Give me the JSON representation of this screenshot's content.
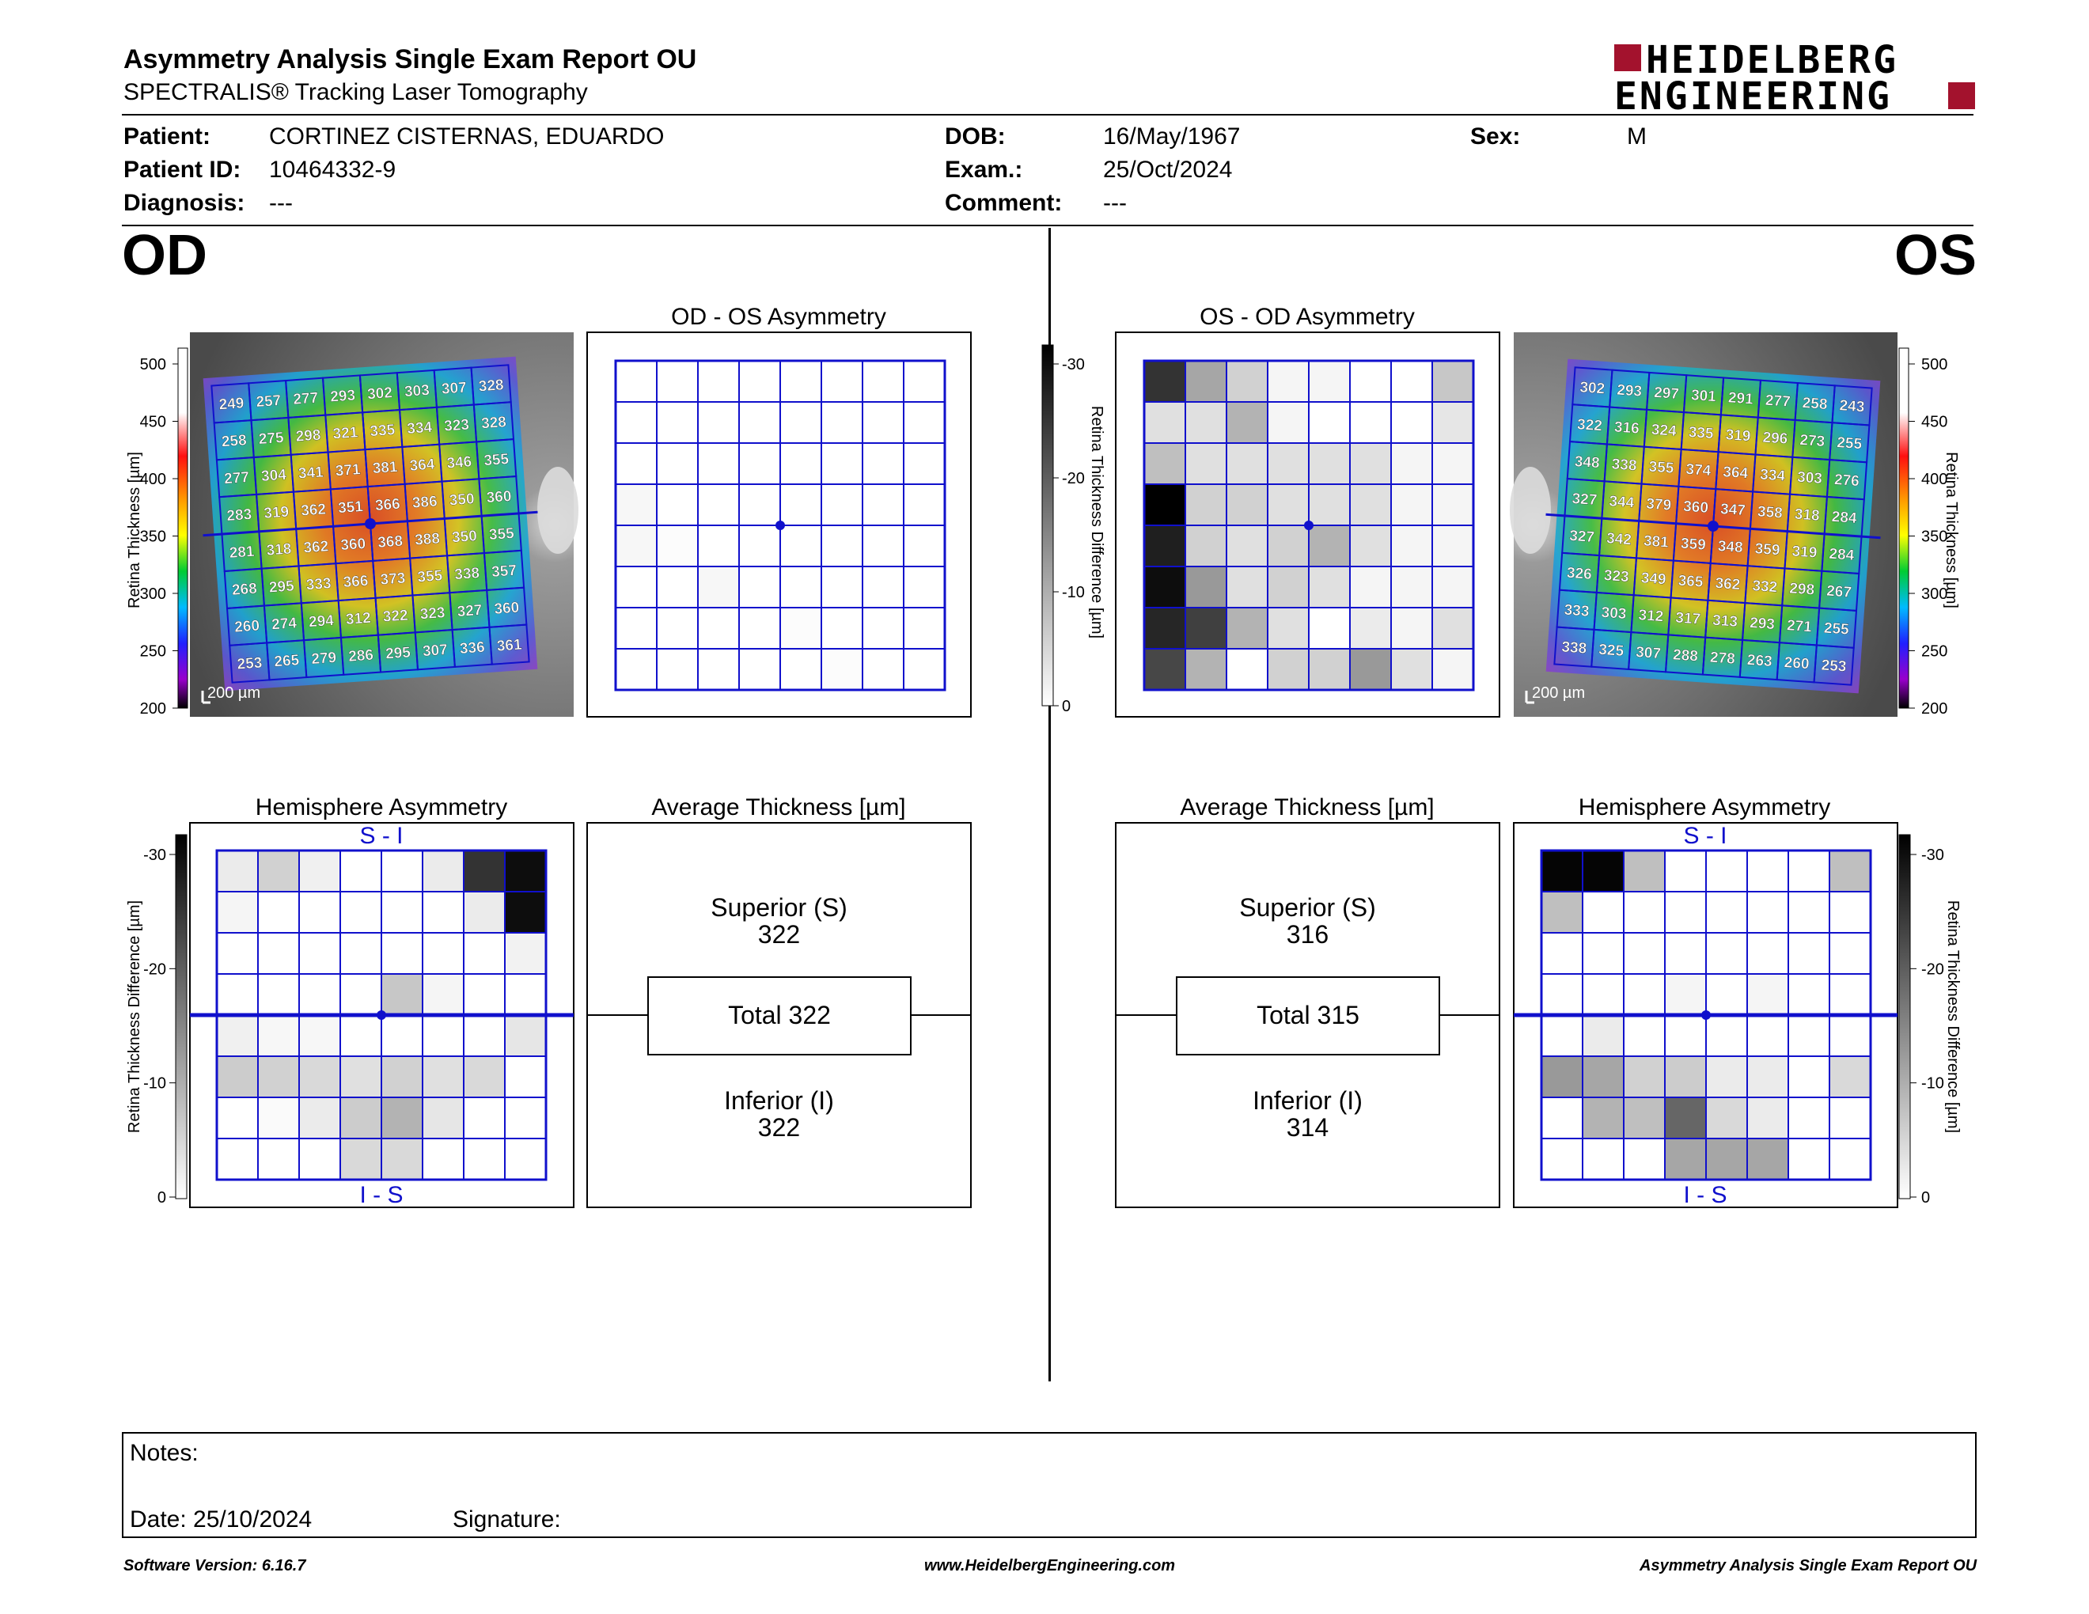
{
  "report": {
    "title": "Asymmetry Analysis Single Exam Report OU",
    "subtitle": "SPECTRALIS® Tracking Laser Tomography",
    "logo_line1": "HEIDELBERG",
    "logo_line2": "ENGINEERING"
  },
  "patient": {
    "patient_label": "Patient:",
    "patient_value": "CORTINEZ CISTERNAS, EDUARDO",
    "id_label": "Patient ID:",
    "id_value": "10464332-9",
    "diagnosis_label": "Diagnosis:",
    "diagnosis_value": "---",
    "dob_label": "DOB:",
    "dob_value": "16/May/1967",
    "exam_label": "Exam.:",
    "exam_value": "25/Oct/2024",
    "comment_label": "Comment:",
    "comment_value": "---",
    "sex_label": "Sex:",
    "sex_value": "M"
  },
  "eyes": {
    "od": "OD",
    "os": "OS"
  },
  "colors": {
    "grid_blue": "#1010cc",
    "accent_red": "#a3122d"
  },
  "od": {
    "thickness_map": {
      "scale_label": "200 µm",
      "axis_label": "Retina Thickness [µm]",
      "ticks": [
        "500",
        "450",
        "400",
        "350",
        "300",
        "250",
        "200"
      ],
      "values": [
        [
          "249",
          "257",
          "277",
          "293",
          "302",
          "303",
          "307",
          "328"
        ],
        [
          "258",
          "275",
          "298",
          "321",
          "335",
          "334",
          "323",
          "328"
        ],
        [
          "277",
          "304",
          "341",
          "371",
          "381",
          "364",
          "346",
          "355"
        ],
        [
          "283",
          "319",
          "362",
          "351",
          "366",
          "386",
          "350",
          "360"
        ],
        [
          "281",
          "318",
          "362",
          "360",
          "368",
          "388",
          "350",
          "355"
        ],
        [
          "268",
          "295",
          "333",
          "366",
          "373",
          "355",
          "338",
          "357"
        ],
        [
          "260",
          "274",
          "294",
          "312",
          "322",
          "323",
          "327",
          "360"
        ],
        [
          "253",
          "265",
          "279",
          "286",
          "295",
          "307",
          "336",
          "361"
        ]
      ]
    },
    "asymmetry": {
      "title": "OD - OS Asymmetry",
      "shades": [
        [
          0,
          0,
          0,
          0,
          0,
          0,
          0,
          0
        ],
        [
          0,
          0,
          0,
          0,
          0,
          0,
          0,
          0
        ],
        [
          0,
          0,
          0,
          0,
          0,
          0,
          0,
          0
        ],
        [
          3,
          0,
          0,
          0,
          0,
          0,
          0,
          0
        ],
        [
          3,
          1,
          0,
          0,
          0,
          0,
          0,
          0
        ],
        [
          0,
          0,
          3,
          0,
          0,
          0,
          0,
          0
        ],
        [
          0,
          0,
          0,
          0,
          1,
          0,
          0,
          0
        ],
        [
          0,
          0,
          0,
          0,
          0,
          1,
          0,
          0
        ]
      ]
    },
    "hemisphere": {
      "title": "Hemisphere Asymmetry",
      "top_label": "S - I",
      "bottom_label": "I - S",
      "shades": [
        [
          8,
          18,
          6,
          0,
          0,
          8,
          80,
          95
        ],
        [
          4,
          0,
          0,
          0,
          0,
          0,
          8,
          95
        ],
        [
          0,
          0,
          0,
          0,
          0,
          0,
          0,
          5
        ],
        [
          0,
          0,
          0,
          0,
          22,
          4,
          0,
          0
        ],
        [
          6,
          3,
          3,
          0,
          0,
          0,
          0,
          10
        ],
        [
          20,
          18,
          15,
          12,
          18,
          12,
          15,
          0
        ],
        [
          0,
          2,
          8,
          20,
          30,
          10,
          0,
          0
        ],
        [
          0,
          0,
          0,
          15,
          15,
          0,
          0,
          0
        ]
      ]
    },
    "average": {
      "title": "Average Thickness [µm]",
      "superior_label": "Superior (S)",
      "superior_value": "322",
      "total": "Total 322",
      "inferior_label": "Inferior (I)",
      "inferior_value": "322"
    }
  },
  "os": {
    "thickness_map": {
      "scale_label": "200 µm",
      "axis_label": "Retina Thickness [µm]",
      "ticks": [
        "500",
        "450",
        "400",
        "350",
        "300",
        "250",
        "200"
      ],
      "values": [
        [
          "302",
          "293",
          "297",
          "301",
          "291",
          "277",
          "258",
          "243"
        ],
        [
          "322",
          "316",
          "324",
          "335",
          "319",
          "296",
          "273",
          "255"
        ],
        [
          "348",
          "338",
          "355",
          "374",
          "364",
          "334",
          "303",
          "276"
        ],
        [
          "327",
          "344",
          "379",
          "360",
          "347",
          "358",
          "318",
          "284"
        ],
        [
          "327",
          "342",
          "381",
          "359",
          "348",
          "359",
          "319",
          "284"
        ],
        [
          "326",
          "323",
          "349",
          "365",
          "362",
          "332",
          "298",
          "267"
        ],
        [
          "333",
          "303",
          "312",
          "317",
          "313",
          "293",
          "271",
          "255"
        ],
        [
          "338",
          "325",
          "307",
          "288",
          "278",
          "263",
          "260",
          "253"
        ]
      ]
    },
    "asymmetry": {
      "title": "OS - OD Asymmetry",
      "shades": [
        [
          80,
          35,
          18,
          4,
          4,
          0,
          0,
          22
        ],
        [
          12,
          12,
          30,
          4,
          0,
          0,
          0,
          10
        ],
        [
          25,
          12,
          12,
          12,
          12,
          12,
          4,
          4
        ],
        [
          100,
          18,
          18,
          12,
          12,
          12,
          4,
          4
        ],
        [
          88,
          18,
          12,
          18,
          30,
          12,
          4,
          4
        ],
        [
          95,
          40,
          12,
          18,
          12,
          4,
          4,
          4
        ],
        [
          85,
          75,
          30,
          12,
          0,
          8,
          4,
          12
        ],
        [
          72,
          30,
          0,
          18,
          18,
          40,
          12,
          4
        ]
      ]
    },
    "hemisphere": {
      "title": "Hemisphere Asymmetry",
      "top_label": "S - I",
      "bottom_label": "I - S",
      "shades": [
        [
          98,
          98,
          25,
          0,
          0,
          0,
          0,
          25
        ],
        [
          25,
          0,
          0,
          0,
          0,
          0,
          0,
          0
        ],
        [
          0,
          0,
          0,
          0,
          0,
          0,
          0,
          0
        ],
        [
          0,
          0,
          0,
          4,
          0,
          4,
          0,
          0
        ],
        [
          0,
          8,
          0,
          0,
          0,
          0,
          0,
          0
        ],
        [
          40,
          35,
          18,
          20,
          8,
          8,
          0,
          15
        ],
        [
          0,
          30,
          25,
          60,
          15,
          8,
          0,
          0
        ],
        [
          0,
          0,
          0,
          35,
          35,
          35,
          0,
          0
        ]
      ]
    },
    "average": {
      "title": "Average Thickness [µm]",
      "superior_label": "Superior (S)",
      "superior_value": "316",
      "total": "Total 315",
      "inferior_label": "Inferior (I)",
      "inferior_value": "314"
    }
  },
  "diff_scale": {
    "axis_label": "Retina Thickness Difference [µm]",
    "ticks": [
      "-30",
      "-20",
      "-10",
      "0"
    ]
  },
  "notes": {
    "notes_label": "Notes:",
    "date_label": "Date: 25/10/2024",
    "signature_label": "Signature:"
  },
  "footer": {
    "software": "Software Version: 6.16.7",
    "website": "www.HeidelbergEngineering.com",
    "report_name": "Asymmetry Analysis Single Exam Report OU"
  }
}
